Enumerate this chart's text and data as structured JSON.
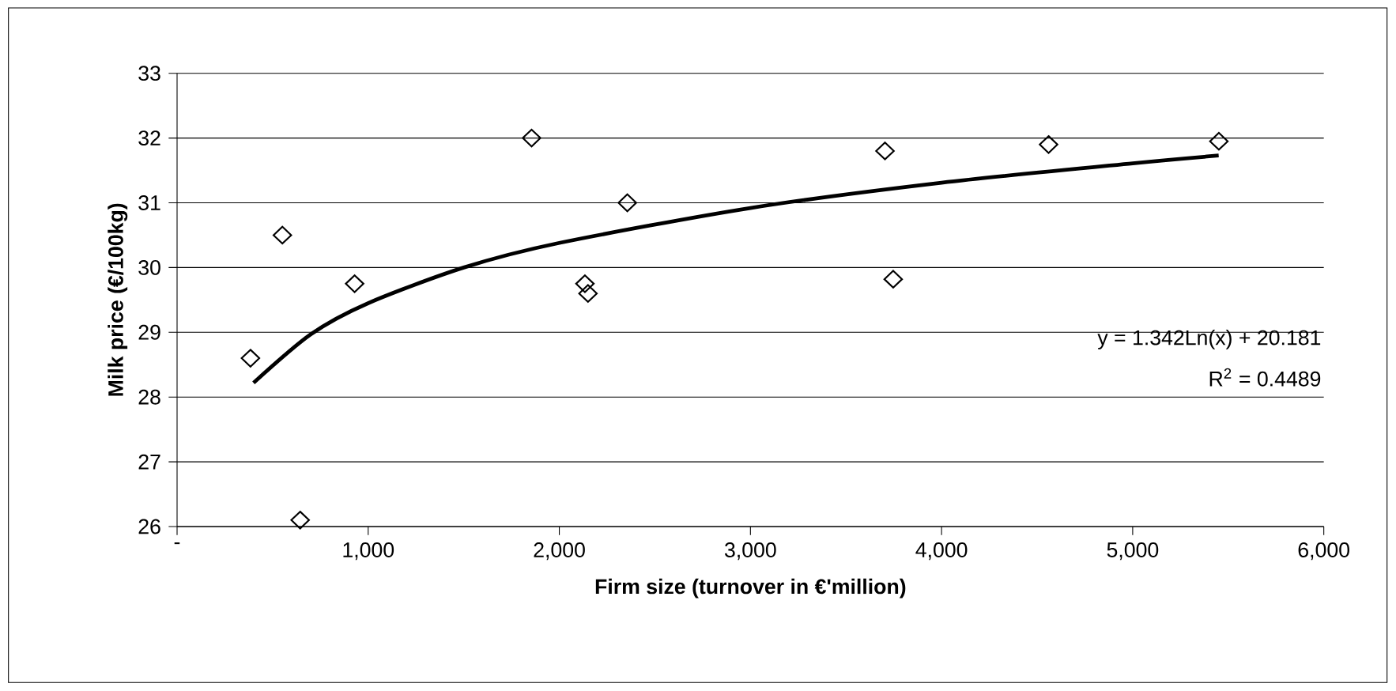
{
  "chart_data": {
    "type": "scatter",
    "xlabel": "Firm size (turnover in €'million)",
    "ylabel": "Milk price (€/100kg)",
    "xlim": [
      0,
      6000
    ],
    "xticks": [
      {
        "value": 0,
        "label": "-"
      },
      {
        "value": 1000,
        "label": "1,000"
      },
      {
        "value": 2000,
        "label": "2,000"
      },
      {
        "value": 3000,
        "label": "3,000"
      },
      {
        "value": 4000,
        "label": "4,000"
      },
      {
        "value": 5000,
        "label": "5,000"
      },
      {
        "value": 6000,
        "label": "6,000"
      }
    ],
    "ylim": [
      26,
      33
    ],
    "yticks": [
      26,
      27,
      28,
      29,
      30,
      31,
      32,
      33
    ],
    "grid": "y",
    "marker": "diamond",
    "series": [
      {
        "color": "#000000",
        "x": [
          384,
          551,
          929,
          644,
          1855,
          2134,
          2150,
          2356,
          3704,
          4560,
          3747,
          5451
        ],
        "values": [
          28.6,
          30.5,
          29.75,
          26.1,
          32.0,
          29.75,
          29.6,
          31.0,
          31.8,
          31.9,
          29.82,
          31.95
        ]
      },
      {
        "type": "line",
        "color": "#000000",
        "marker": "none",
        "line_style": "solid",
        "x": [
          400,
          700,
          1000,
          1500,
          2000,
          3000,
          4000,
          5000,
          5450
        ],
        "values": [
          28.22,
          28.97,
          29.45,
          30.0,
          30.38,
          30.92,
          31.31,
          31.61,
          31.73
        ]
      }
    ],
    "annotations": [
      "y = 1.342Ln(x) + 20.181",
      "R$^{2}$ = 0.4489"
    ]
  }
}
